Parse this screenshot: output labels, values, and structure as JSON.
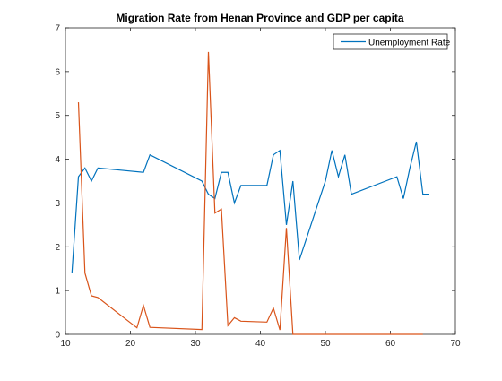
{
  "chart_data": {
    "type": "line",
    "title": "Migration Rate from Henan Province and GDP per capita",
    "xlabel": "",
    "ylabel": "",
    "xlim": [
      10,
      70
    ],
    "ylim": [
      0,
      7
    ],
    "xticks": [
      10,
      20,
      30,
      40,
      50,
      60,
      70
    ],
    "yticks": [
      0,
      1,
      2,
      3,
      4,
      5,
      6,
      7
    ],
    "grid": false,
    "legend_position": "top-right",
    "legend": [
      "Unemployment Rate"
    ],
    "series": [
      {
        "name": "Unemployment Rate",
        "color": "#0072bd",
        "x": [
          11,
          12,
          13,
          14,
          15,
          22,
          23,
          31,
          32,
          33,
          34,
          35,
          36,
          37,
          41,
          42,
          43,
          44,
          45,
          46,
          50,
          51,
          52,
          53,
          54,
          61,
          62,
          63,
          64,
          65,
          66
        ],
        "y": [
          1.4,
          3.6,
          3.8,
          3.5,
          3.8,
          3.7,
          4.1,
          3.5,
          3.2,
          3.1,
          3.7,
          3.7,
          3.0,
          3.4,
          3.4,
          4.1,
          4.2,
          2.5,
          3.5,
          1.7,
          3.5,
          4.2,
          3.6,
          4.1,
          3.2,
          3.6,
          3.1,
          3.8,
          4.4,
          3.2,
          3.2
        ]
      },
      {
        "color": "#d95319",
        "x": [
          12,
          13,
          14,
          15,
          21,
          22,
          23,
          31,
          32,
          33,
          34,
          35,
          36,
          37,
          41,
          42,
          43,
          44,
          45,
          46,
          65
        ],
        "y": [
          5.3,
          1.4,
          0.88,
          0.84,
          0.15,
          0.66,
          0.16,
          0.11,
          6.45,
          2.77,
          2.86,
          0.2,
          0.38,
          0.3,
          0.28,
          0.6,
          0.1,
          2.43,
          0.0,
          0.0,
          0.0
        ]
      }
    ]
  }
}
